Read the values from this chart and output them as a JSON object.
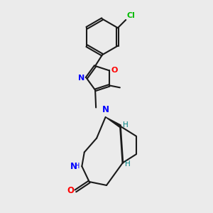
{
  "bg_color": "#ebebeb",
  "bond_color": "#1a1a1a",
  "N_color": "#0000ff",
  "O_color": "#ff0000",
  "Cl_color": "#00bb00",
  "H_color": "#008080",
  "figsize": [
    3.0,
    3.0
  ],
  "dpi": 100,
  "xlim": [
    1.5,
    8.5
  ],
  "ylim": [
    0.5,
    10.5
  ]
}
